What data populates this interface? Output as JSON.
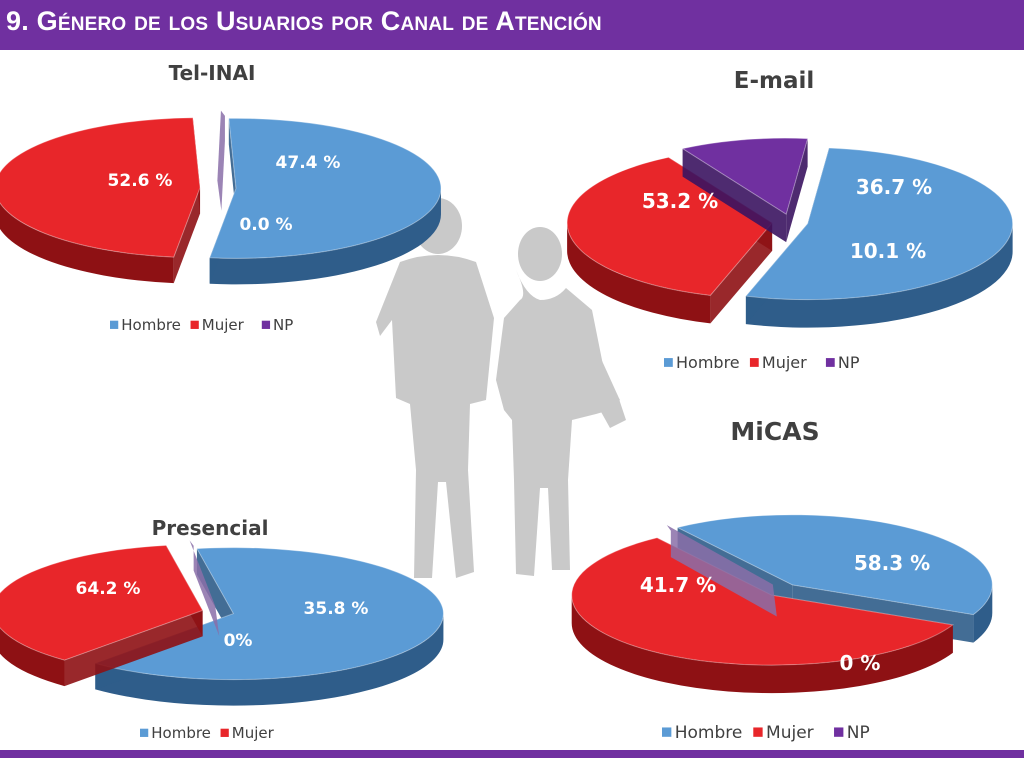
{
  "header": {
    "title": "9. Género de los Usuarios por Canal de Atención"
  },
  "colors": {
    "banner": "#7030a0",
    "hombre": "#5b9bd5",
    "mujer": "#e8262a",
    "np": "#7030a0",
    "silhouette": "#c9c9c9"
  },
  "chart_data": [
    {
      "type": "pie",
      "title": "Tel-INAI",
      "categories": [
        "Hombre",
        "Mujer",
        "NP"
      ],
      "values": [
        52.6,
        47.4,
        0.0
      ],
      "labels": [
        "52.6 %",
        "47.4 %",
        "0.0 %"
      ],
      "legend": [
        "Hombre",
        "Mujer",
        "NP"
      ],
      "legend_position": "bottom",
      "three_d": true,
      "exploded": true
    },
    {
      "type": "pie",
      "title": "E-mail",
      "categories": [
        "Hombre",
        "Mujer",
        "NP"
      ],
      "values": [
        53.2,
        36.7,
        10.1
      ],
      "labels": [
        "53.2 %",
        "36.7 %",
        "10.1 %"
      ],
      "legend": [
        "Hombre",
        "Mujer",
        "NP"
      ],
      "legend_position": "bottom",
      "three_d": true,
      "exploded": true
    },
    {
      "type": "pie",
      "title": "Presencial",
      "categories": [
        "Hombre",
        "Mujer",
        "NP"
      ],
      "values": [
        64.2,
        35.8,
        0
      ],
      "labels": [
        "64.2 %",
        "35.8 %",
        "0%"
      ],
      "legend": [
        "Hombre",
        "Mujer"
      ],
      "legend_position": "bottom",
      "three_d": true,
      "exploded": true
    },
    {
      "type": "pie",
      "title": "MiCAS",
      "categories": [
        "Hombre",
        "Mujer",
        "NP"
      ],
      "values": [
        41.7,
        58.3,
        0
      ],
      "labels": [
        "41.7 %",
        "58.3 %",
        "0 %"
      ],
      "legend": [
        "Hombre",
        "Mujer",
        "NP"
      ],
      "legend_position": "bottom",
      "three_d": true,
      "exploded": true
    }
  ]
}
